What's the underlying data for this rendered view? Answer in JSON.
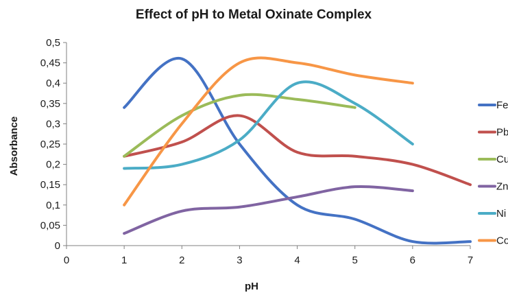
{
  "chart_data": {
    "type": "line",
    "title": "Effect of pH to Metal Oxinate Complex",
    "xlabel": "pH",
    "ylabel": "Absorbance",
    "xlim": [
      0,
      7
    ],
    "ylim": [
      0,
      0.5
    ],
    "x_ticks": [
      "0",
      "1",
      "2",
      "3",
      "4",
      "5",
      "6",
      "7"
    ],
    "y_ticks": [
      "0",
      "0,05",
      "0,1",
      "0,15",
      "0,2",
      "0,25",
      "0,3",
      "0,35",
      "0,4",
      "0,45",
      "0,5"
    ],
    "smooth": true,
    "grid": false,
    "legend_position": "right",
    "series": [
      {
        "name": "Fe",
        "color": "#4472C4",
        "x": [
          1,
          2,
          3,
          4,
          5,
          6,
          7
        ],
        "values": [
          0.34,
          0.46,
          0.25,
          0.1,
          0.065,
          0.01,
          0.01
        ]
      },
      {
        "name": "Pb",
        "color": "#C0504D",
        "x": [
          1,
          2,
          3,
          4,
          5,
          6,
          7
        ],
        "values": [
          0.22,
          0.255,
          0.32,
          0.23,
          0.22,
          0.2,
          0.15
        ]
      },
      {
        "name": "Cu",
        "color": "#9BBB59",
        "x": [
          1,
          2,
          3,
          4,
          5
        ],
        "values": [
          0.22,
          0.32,
          0.37,
          0.36,
          0.34
        ]
      },
      {
        "name": "Zn",
        "color": "#8064A2",
        "x": [
          1,
          2,
          3,
          4,
          5,
          6
        ],
        "values": [
          0.03,
          0.085,
          0.095,
          0.12,
          0.145,
          0.135
        ]
      },
      {
        "name": "Ni",
        "color": "#4BACC6",
        "x": [
          1,
          2,
          3,
          4,
          5,
          6
        ],
        "values": [
          0.19,
          0.2,
          0.26,
          0.4,
          0.35,
          0.25
        ]
      },
      {
        "name": "Co",
        "color": "#F79646",
        "x": [
          1,
          2,
          3,
          4,
          5,
          6
        ],
        "values": [
          0.1,
          0.3,
          0.45,
          0.45,
          0.42,
          0.4
        ]
      }
    ]
  }
}
